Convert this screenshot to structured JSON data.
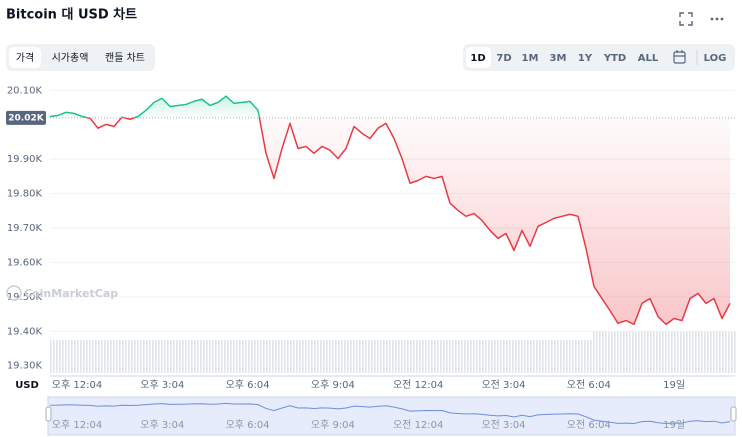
{
  "header": {
    "title": "Bitcoin 대 USD 차트"
  },
  "tabs": [
    "가격",
    "시가총액",
    "캔들 차트"
  ],
  "ranges": [
    "1D",
    "7D",
    "1M",
    "3M",
    "1Y",
    "YTD",
    "ALL"
  ],
  "log_button": "LOG",
  "chart_data": {
    "type": "line",
    "y_axis_label": "USD",
    "watermark": "CoinMarketCap",
    "reference": {
      "value": 20020,
      "label": "20.02K"
    },
    "up_color": "#16c784",
    "down_color": "#ea3943",
    "values": [
      20024,
      20027,
      20036,
      20033,
      20024,
      20019,
      19990,
      20001,
      19995,
      20022,
      20016,
      20024,
      20042,
      20065,
      20077,
      20053,
      20056,
      20059,
      20068,
      20074,
      20056,
      20065,
      20083,
      20062,
      20065,
      20068,
      20042,
      19917,
      19844,
      19931,
      20004,
      19931,
      19937,
      19917,
      19937,
      19926,
      19902,
      19931,
      19995,
      19975,
      19960,
      19990,
      20004,
      19960,
      19902,
      19830,
      19838,
      19850,
      19844,
      19850,
      19772,
      19751,
      19734,
      19742,
      19722,
      19693,
      19670,
      19684,
      19635,
      19693,
      19647,
      19705,
      19716,
      19728,
      19734,
      19740,
      19734,
      19641,
      19530,
      19495,
      19460,
      19423,
      19431,
      19420,
      19481,
      19495,
      19443,
      19420,
      19437,
      19431,
      19495,
      19510,
      19481,
      19495,
      19437,
      19481
    ],
    "ylim": [
      19270,
      20130
    ],
    "yticks": [
      {
        "value": 20100,
        "label": "20.10K"
      },
      {
        "value": 19900,
        "label": "19.90K"
      },
      {
        "value": 19800,
        "label": "19.80K"
      },
      {
        "value": 19700,
        "label": "19.70K"
      },
      {
        "value": 19600,
        "label": "19.60K"
      },
      {
        "value": 19500,
        "label": "19.50K"
      },
      {
        "value": 19400,
        "label": "19.40K"
      },
      {
        "value": 19300,
        "label": "19.30K"
      }
    ],
    "xticks": [
      "오후 12:04",
      "오후 3:04",
      "오후 6:04",
      "오후 9:04",
      "오전 12:04",
      "오전 3:04",
      "오전 6:04",
      "19일"
    ],
    "grid": true
  }
}
